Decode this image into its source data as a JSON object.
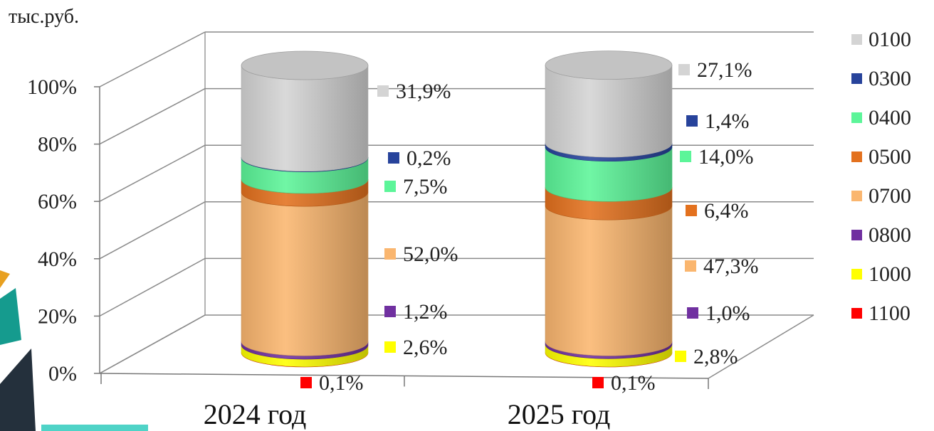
{
  "unit_label": "тыс.руб.",
  "chart_data": {
    "type": "bar",
    "stacked": true,
    "three_d": "cylinder",
    "categories": [
      "2024 год",
      "2025 год"
    ],
    "y_ticks": [
      "0%",
      "20%",
      "40%",
      "60%",
      "80%",
      "100%"
    ],
    "ylim": [
      0,
      100
    ],
    "grid": true,
    "legend_position": "right",
    "series": [
      {
        "name": "1100",
        "color": "#ff0000",
        "values": [
          0.1,
          0.1
        ],
        "labels": [
          "0,1%",
          "0,1%"
        ]
      },
      {
        "name": "1000",
        "color": "#ffff00",
        "values": [
          2.6,
          2.8
        ],
        "labels": [
          "2,6%",
          "2,8%"
        ]
      },
      {
        "name": "0800",
        "color": "#7030a0",
        "values": [
          1.2,
          1.0
        ],
        "labels": [
          "1,2%",
          "1,0%"
        ]
      },
      {
        "name": "0700",
        "color": "#fab66f",
        "values": [
          52.0,
          47.3
        ],
        "labels": [
          "52,0%",
          "47,3%"
        ]
      },
      {
        "name": "0500",
        "color": "#e3711e",
        "values": [
          4.5,
          6.4
        ],
        "labels": [
          "",
          "6,4%"
        ]
      },
      {
        "name": "0400",
        "color": "#5cf599",
        "values": [
          7.5,
          14.0
        ],
        "labels": [
          "7,5%",
          "14,0%"
        ]
      },
      {
        "name": "0300",
        "color": "#27439b",
        "values": [
          0.2,
          1.4
        ],
        "labels": [
          "0,2%",
          "1,4%"
        ]
      },
      {
        "name": "0100",
        "color": "#d4d4d4",
        "values": [
          31.9,
          27.1
        ],
        "labels": [
          "31,9%",
          "27,1%"
        ]
      }
    ]
  }
}
